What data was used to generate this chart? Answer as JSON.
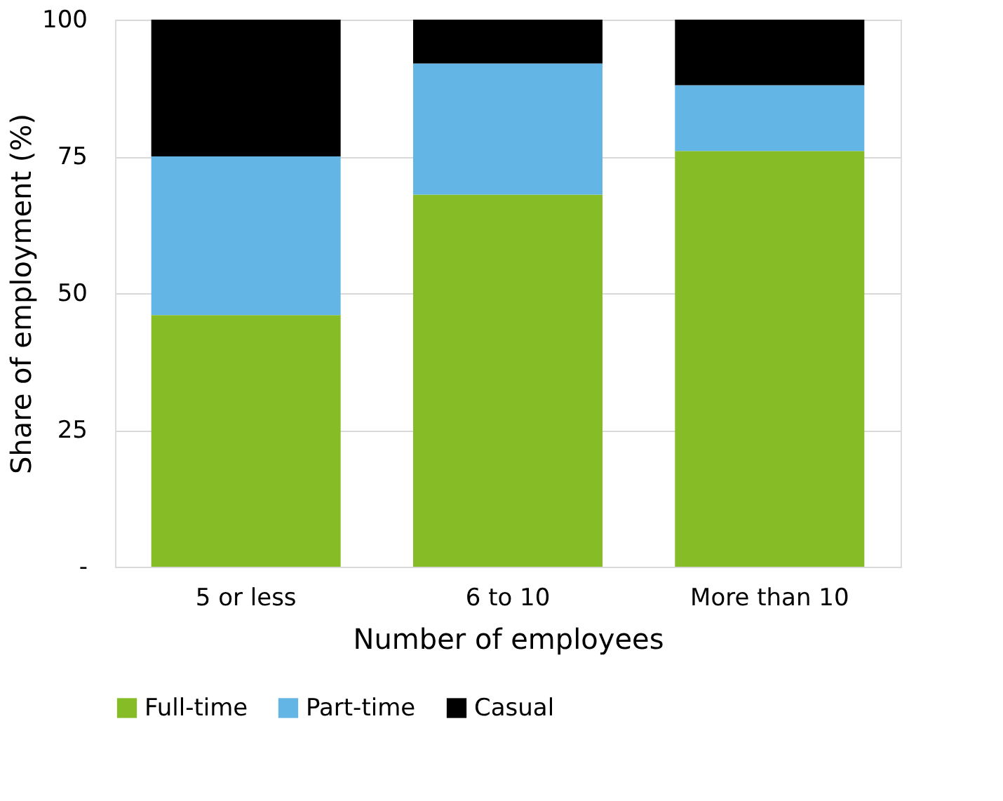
{
  "chart_data": {
    "type": "bar",
    "stacked": true,
    "xlabel": "Number of employees",
    "ylabel": "Share of employment (%)",
    "categories": [
      "5 or less",
      "6 to 10",
      "More than 10"
    ],
    "series": [
      {
        "name": "Full-time",
        "color": "#86bc25",
        "values": [
          46,
          68,
          76
        ]
      },
      {
        "name": "Part-time",
        "color": "#62b5e5",
        "values": [
          29,
          24,
          12
        ]
      },
      {
        "name": "Casual",
        "color": "#000000",
        "values": [
          25,
          8,
          12
        ]
      }
    ],
    "ylim": [
      0,
      100
    ],
    "yticks": [
      {
        "value": 0,
        "label": "-"
      },
      25,
      50,
      75,
      100
    ],
    "grid": "y",
    "legend": "bottom"
  }
}
